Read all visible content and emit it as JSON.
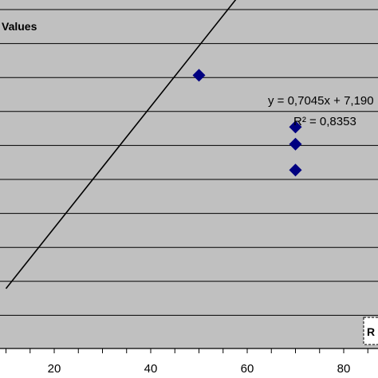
{
  "chart_data": {
    "type": "scatter",
    "title": "Values",
    "xlabel": "",
    "ylabel": "",
    "xlim": [
      10,
      85
    ],
    "x_ticks": [
      20,
      40,
      60,
      80
    ],
    "grid": true,
    "series": [
      {
        "points": [
          {
            "x": 50,
            "y": 70
          },
          {
            "x": 70,
            "y": 64
          },
          {
            "x": 70,
            "y": 62
          },
          {
            "x": 70,
            "y": 59
          }
        ],
        "marker": "diamond",
        "color": "#000080"
      }
    ],
    "trendline": {
      "type": "linear",
      "slope": 0.7045,
      "intercept": 7.19,
      "equation_label": "y = 0,7045x + 7,190",
      "r2_label": "R² = 0,8353",
      "color": "#000000"
    },
    "legend": {
      "text": "R",
      "placement": "bottom-right"
    },
    "colors": {
      "plot_background": "#c0c0c0",
      "gridline": "#000000",
      "marker": "#000080"
    }
  }
}
